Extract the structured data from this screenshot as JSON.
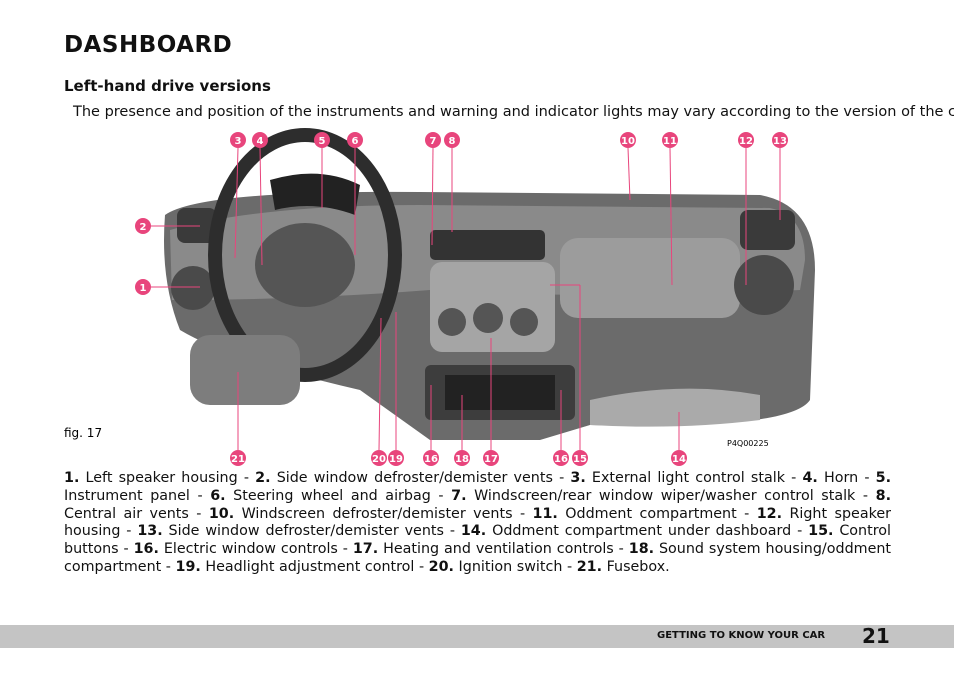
{
  "header": {
    "title": "DASHBOARD",
    "subtitle": "Left-hand drive versions"
  },
  "intro": "The presence and position of the instruments and warning and indicator lights may vary according to the version of the car.",
  "figure": {
    "caption": "fig. 17",
    "code": "P4Q00225",
    "callouts": [
      "3",
      "4",
      "5",
      "6",
      "7",
      "8",
      "10",
      "11",
      "12",
      "13",
      "2",
      "1",
      "21",
      "20",
      "19",
      "16",
      "18",
      "17",
      "16",
      "15",
      "14"
    ]
  },
  "legend": {
    "separator": " - ",
    "items": [
      {
        "num": "1.",
        "text": "Left speaker housing"
      },
      {
        "num": "2.",
        "text": "Side window defroster/demister vents"
      },
      {
        "num": "3.",
        "text": "External light control stalk"
      },
      {
        "num": "4.",
        "text": "Horn"
      },
      {
        "num": "5.",
        "text": "Instrument panel"
      },
      {
        "num": "6.",
        "text": "Steering wheel and airbag"
      },
      {
        "num": "7.",
        "text": "Windscreen/rear window wiper/washer control stalk"
      },
      {
        "num": "8.",
        "text": "Central air vents"
      },
      {
        "num": "10.",
        "text": "Windscreen defroster/demister vents"
      },
      {
        "num": "11.",
        "text": "Oddment compartment"
      },
      {
        "num": "12.",
        "text": "Right speaker housing"
      },
      {
        "num": "13.",
        "text": "Side window defroster/demister vents"
      },
      {
        "num": "14.",
        "text": "Oddment compartment under dashboard"
      },
      {
        "num": "15.",
        "text": "Control buttons"
      },
      {
        "num": "16.",
        "text": "Electric window controls"
      },
      {
        "num": "17.",
        "text": "Heating and ventilation controls"
      },
      {
        "num": "18.",
        "text": "Sound system housing/oddment compartment"
      },
      {
        "num": "19.",
        "text": "Headlight adjustment control"
      },
      {
        "num": "20.",
        "text": "Ignition switch"
      },
      {
        "num": "21.",
        "text": "Fusebox."
      }
    ]
  },
  "footer": {
    "section": "GETTING TO KNOW YOUR CAR",
    "page": "21"
  }
}
